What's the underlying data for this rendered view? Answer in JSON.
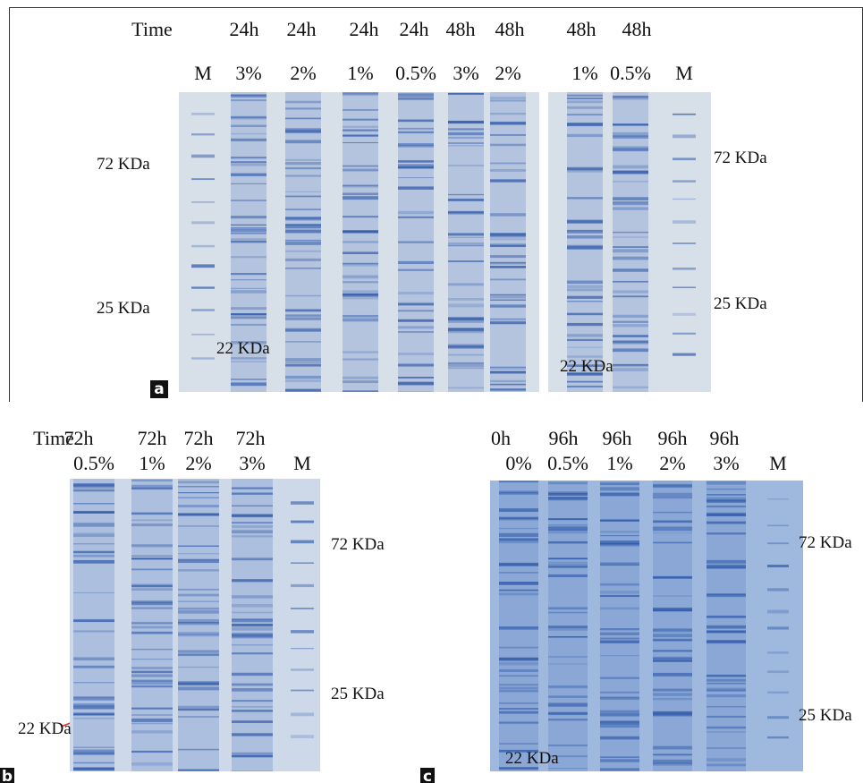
{
  "panels": [
    {
      "letter": "a",
      "time_header": "Time",
      "times": [
        "24h",
        "24h",
        "24h",
        "24h",
        "48h",
        "48h",
        "48h",
        "48h"
      ],
      "lanes": [
        "M",
        "3%",
        "2%",
        "1%",
        "0.5%",
        "3%",
        "2%",
        "1%",
        "0.5%",
        "M"
      ],
      "markers_left": [
        "72 KDa",
        "25 KDa"
      ],
      "markers_right": [
        "72 KDa",
        "25 KDa"
      ],
      "annotations": [
        "22 KDa",
        "22 KDa"
      ]
    },
    {
      "letter": "b",
      "time_header": "Time",
      "times": [
        "72h",
        "72h",
        "72h",
        "72h"
      ],
      "lanes": [
        "0.5%",
        "1%",
        "2%",
        "3%",
        "M"
      ],
      "markers_right": [
        "72 KDa",
        "25 KDa"
      ],
      "annotations": [
        "22 KDa"
      ]
    },
    {
      "letter": "c",
      "times": [
        "0h",
        "96h",
        "96h",
        "96h",
        "96h"
      ],
      "lanes": [
        "0%",
        "0.5%",
        "1%",
        "2%",
        "3%",
        "M"
      ],
      "markers_right": [
        "72 KDa",
        "25 KDa"
      ],
      "annotations": [
        "22 KDa"
      ]
    }
  ]
}
